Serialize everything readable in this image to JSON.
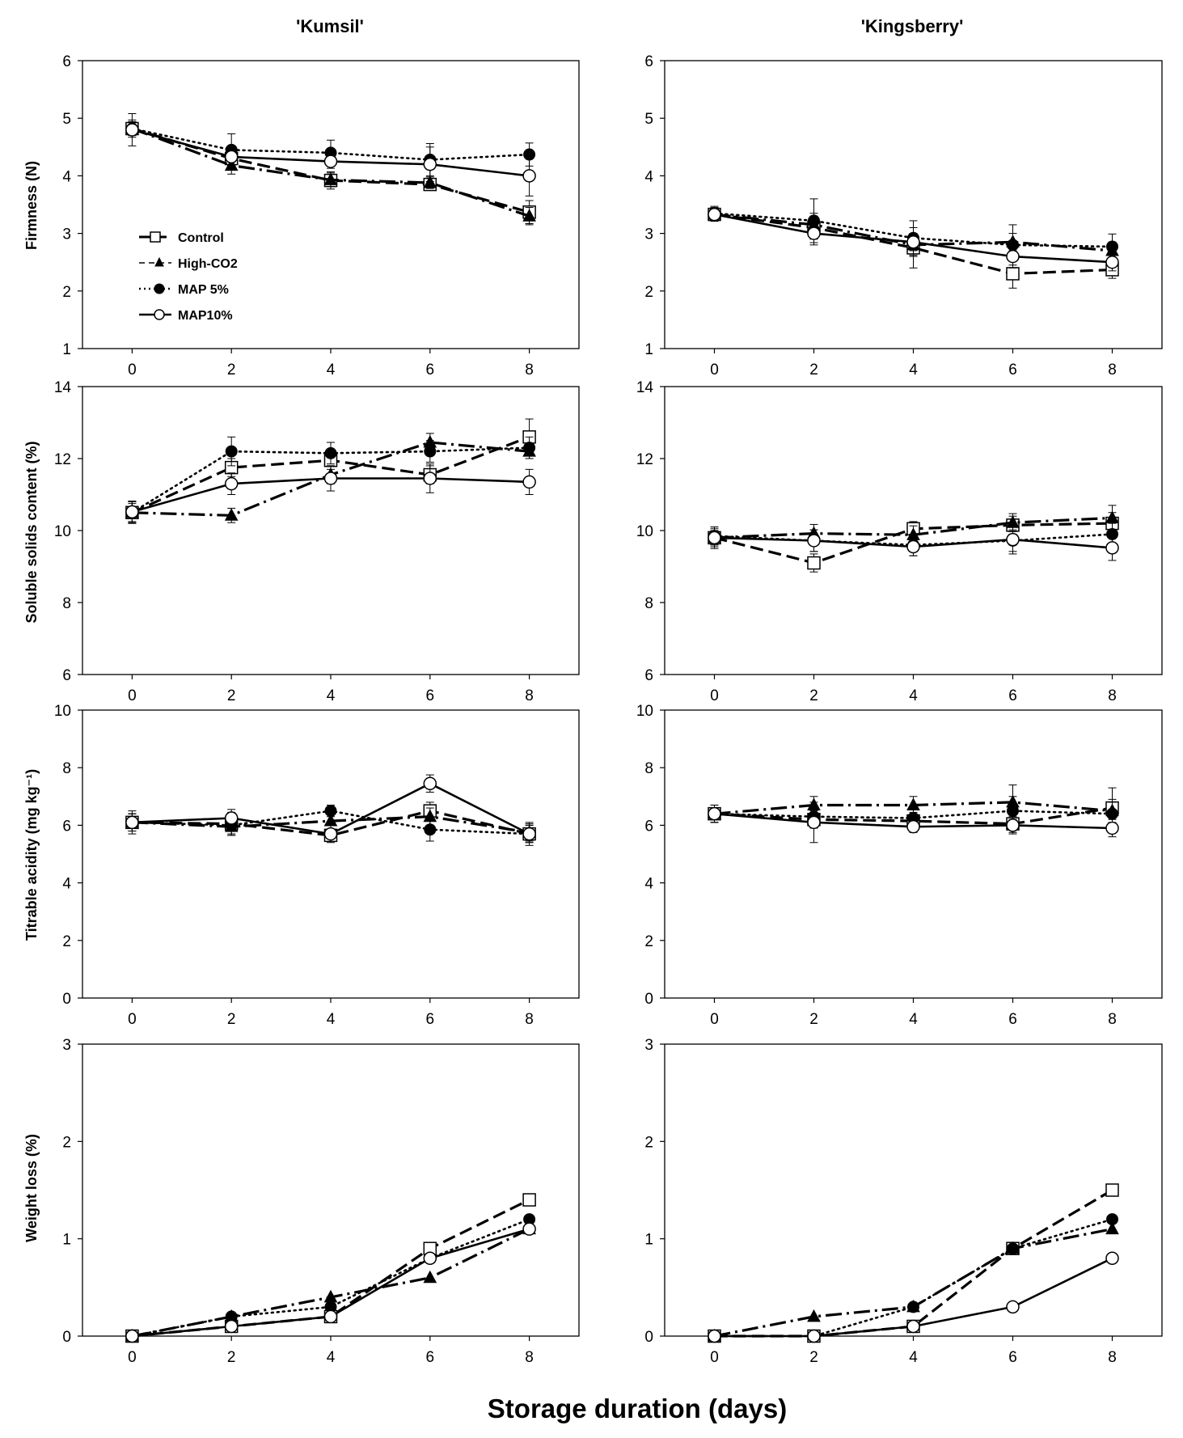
{
  "figure": {
    "column_titles": [
      "'Kumsil'",
      "'Kingsberry'"
    ],
    "x_label": "Storage duration (days)",
    "row_labels": [
      "Firmness (N)",
      "Soluble solids content (%)",
      "Titrable acidity (mg kg⁻¹)",
      "Weight loss (%)"
    ]
  },
  "legend": {
    "placement": "inside top-left of Kumsil firmness panel",
    "items": [
      "Control",
      "High-CO2",
      "MAP 5%",
      "MAP10%"
    ]
  },
  "chart_data": [
    {
      "type": "line",
      "title": "'Kumsil'",
      "xlabel": "",
      "ylabel": "Firmness (N)",
      "x": [
        0,
        2,
        4,
        6,
        8
      ],
      "xlim": [
        -1,
        9
      ],
      "ylim": [
        1,
        6
      ],
      "yticks": [
        1,
        2,
        3,
        4,
        5,
        6
      ],
      "series": [
        {
          "name": "Control",
          "values": [
            4.82,
            4.3,
            3.92,
            3.85,
            3.37
          ],
          "errors": [
            0.12,
            0.12,
            0.15,
            0.1,
            0.2
          ]
        },
        {
          "name": "High-CO2",
          "values": [
            4.82,
            4.18,
            3.93,
            3.88,
            3.3
          ],
          "errors": [
            0.12,
            0.15,
            0.12,
            0.1,
            0.15
          ]
        },
        {
          "name": "MAP 5%",
          "values": [
            4.82,
            4.45,
            4.4,
            4.28,
            4.37
          ],
          "errors": [
            0.15,
            0.28,
            0.22,
            0.28,
            0.2
          ]
        },
        {
          "name": "MAP10%",
          "values": [
            4.8,
            4.33,
            4.25,
            4.2,
            4.0
          ],
          "errors": [
            0.28,
            0.15,
            0.12,
            0.3,
            0.35
          ]
        }
      ]
    },
    {
      "type": "line",
      "title": "'Kingsberry'",
      "xlabel": "",
      "ylabel": "",
      "x": [
        0,
        2,
        4,
        6,
        8
      ],
      "xlim": [
        -1,
        9
      ],
      "ylim": [
        1,
        6
      ],
      "yticks": [
        1,
        2,
        3,
        4,
        5,
        6
      ],
      "series": [
        {
          "name": "Control",
          "values": [
            3.33,
            3.1,
            2.75,
            2.3,
            2.37
          ],
          "errors": [
            0.1,
            0.2,
            0.35,
            0.25,
            0.15
          ]
        },
        {
          "name": "High-CO2",
          "values": [
            3.33,
            3.15,
            2.8,
            2.85,
            2.7
          ],
          "errors": [
            0.1,
            0.2,
            0.2,
            0.15,
            0.15
          ]
        },
        {
          "name": "MAP 5%",
          "values": [
            3.35,
            3.22,
            2.92,
            2.8,
            2.77
          ],
          "errors": [
            0.12,
            0.38,
            0.3,
            0.35,
            0.22
          ]
        },
        {
          "name": "MAP10%",
          "values": [
            3.33,
            3.0,
            2.85,
            2.6,
            2.5
          ],
          "errors": [
            0.12,
            0.2,
            0.15,
            0.2,
            0.15
          ]
        }
      ]
    },
    {
      "type": "line",
      "title": "",
      "xlabel": "",
      "ylabel": "Soluble solids content (%)",
      "x": [
        0,
        2,
        4,
        6,
        8
      ],
      "xlim": [
        -1,
        9
      ],
      "ylim": [
        6,
        14
      ],
      "yticks": [
        6,
        8,
        10,
        12,
        14
      ],
      "series": [
        {
          "name": "Control",
          "values": [
            10.5,
            11.75,
            11.95,
            11.55,
            12.6
          ],
          "errors": [
            0.25,
            0.25,
            0.25,
            0.25,
            0.5
          ]
        },
        {
          "name": "High-CO2",
          "values": [
            10.5,
            10.42,
            11.55,
            12.45,
            12.2
          ],
          "errors": [
            0.3,
            0.2,
            0.25,
            0.25,
            0.2
          ]
        },
        {
          "name": "MAP 5%",
          "values": [
            10.5,
            12.2,
            12.15,
            12.2,
            12.3
          ],
          "errors": [
            0.3,
            0.4,
            0.3,
            0.3,
            0.3
          ]
        },
        {
          "name": "MAP10%",
          "values": [
            10.52,
            11.3,
            11.45,
            11.45,
            11.35
          ],
          "errors": [
            0.3,
            0.3,
            0.35,
            0.4,
            0.35
          ]
        }
      ]
    },
    {
      "type": "line",
      "title": "",
      "xlabel": "",
      "ylabel": "",
      "x": [
        0,
        2,
        4,
        6,
        8
      ],
      "xlim": [
        -1,
        9
      ],
      "ylim": [
        6,
        14
      ],
      "yticks": [
        6,
        8,
        10,
        12,
        14
      ],
      "series": [
        {
          "name": "Control",
          "values": [
            9.8,
            9.1,
            10.05,
            10.15,
            10.2
          ],
          "errors": [
            0.25,
            0.25,
            0.2,
            0.25,
            0.3
          ]
        },
        {
          "name": "High-CO2",
          "values": [
            9.8,
            9.92,
            9.88,
            10.22,
            10.35
          ],
          "errors": [
            0.3,
            0.25,
            0.25,
            0.25,
            0.35
          ]
        },
        {
          "name": "MAP 5%",
          "values": [
            9.85,
            9.72,
            9.6,
            9.72,
            9.9
          ],
          "errors": [
            0.25,
            0.3,
            0.3,
            0.3,
            0.3
          ]
        },
        {
          "name": "MAP10%",
          "values": [
            9.8,
            9.72,
            9.55,
            9.75,
            9.52
          ],
          "errors": [
            0.2,
            0.3,
            0.25,
            0.4,
            0.35
          ]
        }
      ]
    },
    {
      "type": "line",
      "title": "",
      "xlabel": "",
      "ylabel": "Titrable acidity (mg kg⁻¹)",
      "x": [
        0,
        2,
        4,
        6,
        8
      ],
      "xlim": [
        -1,
        9
      ],
      "ylim": [
        0,
        10
      ],
      "yticks": [
        0,
        2,
        4,
        6,
        8,
        10
      ],
      "series": [
        {
          "name": "Control",
          "values": [
            6.1,
            6.05,
            5.65,
            6.5,
            5.7
          ],
          "errors": [
            0.4,
            0.4,
            0.2,
            0.3,
            0.3
          ]
        },
        {
          "name": "High-CO2",
          "values": [
            6.1,
            5.95,
            6.15,
            6.3,
            5.75
          ],
          "errors": [
            0.3,
            0.3,
            0.3,
            0.3,
            0.3
          ]
        },
        {
          "name": "MAP 5%",
          "values": [
            6.1,
            6.0,
            6.5,
            5.85,
            5.7
          ],
          "errors": [
            0.3,
            0.3,
            0.2,
            0.4,
            0.3
          ]
        },
        {
          "name": "MAP10%",
          "values": [
            6.1,
            6.25,
            5.7,
            7.45,
            5.7
          ],
          "errors": [
            0.3,
            0.3,
            0.3,
            0.3,
            0.4
          ]
        }
      ]
    },
    {
      "type": "line",
      "title": "",
      "xlabel": "",
      "ylabel": "",
      "x": [
        0,
        2,
        4,
        6,
        8
      ],
      "xlim": [
        -1,
        9
      ],
      "ylim": [
        0,
        10
      ],
      "yticks": [
        0,
        2,
        4,
        6,
        8,
        10
      ],
      "series": [
        {
          "name": "Control",
          "values": [
            6.4,
            6.2,
            6.15,
            6.05,
            6.6
          ],
          "errors": [
            0.3,
            0.3,
            0.3,
            0.3,
            0.7
          ]
        },
        {
          "name": "High-CO2",
          "values": [
            6.4,
            6.7,
            6.7,
            6.8,
            6.5
          ],
          "errors": [
            0.3,
            0.3,
            0.3,
            0.6,
            0.4
          ]
        },
        {
          "name": "MAP 5%",
          "values": [
            6.4,
            6.3,
            6.25,
            6.5,
            6.4
          ],
          "errors": [
            0.3,
            0.3,
            0.3,
            0.5,
            0.4
          ]
        },
        {
          "name": "MAP10%",
          "values": [
            6.4,
            6.1,
            5.95,
            6.0,
            5.9
          ],
          "errors": [
            0.3,
            0.7,
            0.2,
            0.3,
            0.3
          ]
        }
      ]
    },
    {
      "type": "line",
      "title": "",
      "xlabel": "Storage duration (days)",
      "ylabel": "Weight loss (%)",
      "x": [
        0,
        2,
        4,
        6,
        8
      ],
      "xlim": [
        -1,
        9
      ],
      "ylim": [
        0,
        3
      ],
      "yticks": [
        0,
        1,
        2,
        3
      ],
      "series": [
        {
          "name": "Control",
          "values": [
            0,
            0.1,
            0.2,
            0.9,
            1.4
          ],
          "errors": []
        },
        {
          "name": "High-CO2",
          "values": [
            0,
            0.2,
            0.4,
            0.6,
            1.1
          ],
          "errors": []
        },
        {
          "name": "MAP 5%",
          "values": [
            0,
            0.2,
            0.3,
            0.8,
            1.2
          ],
          "errors": []
        },
        {
          "name": "MAP10%",
          "values": [
            0,
            0.1,
            0.2,
            0.8,
            1.1
          ],
          "errors": []
        }
      ]
    },
    {
      "type": "line",
      "title": "",
      "xlabel": "Storage duration (days)",
      "ylabel": "",
      "x": [
        0,
        2,
        4,
        6,
        8
      ],
      "xlim": [
        -1,
        9
      ],
      "ylim": [
        0,
        3
      ],
      "yticks": [
        0,
        1,
        2,
        3
      ],
      "series": [
        {
          "name": "Control",
          "values": [
            0,
            0,
            0.1,
            0.9,
            1.5
          ],
          "errors": []
        },
        {
          "name": "High-CO2",
          "values": [
            0,
            0.2,
            0.3,
            0.9,
            1.1
          ],
          "errors": []
        },
        {
          "name": "MAP 5%",
          "values": [
            0,
            0,
            0.3,
            0.9,
            1.2
          ],
          "errors": []
        },
        {
          "name": "MAP10%",
          "values": [
            0,
            0,
            0.1,
            0.3,
            0.8
          ],
          "errors": []
        }
      ]
    }
  ]
}
